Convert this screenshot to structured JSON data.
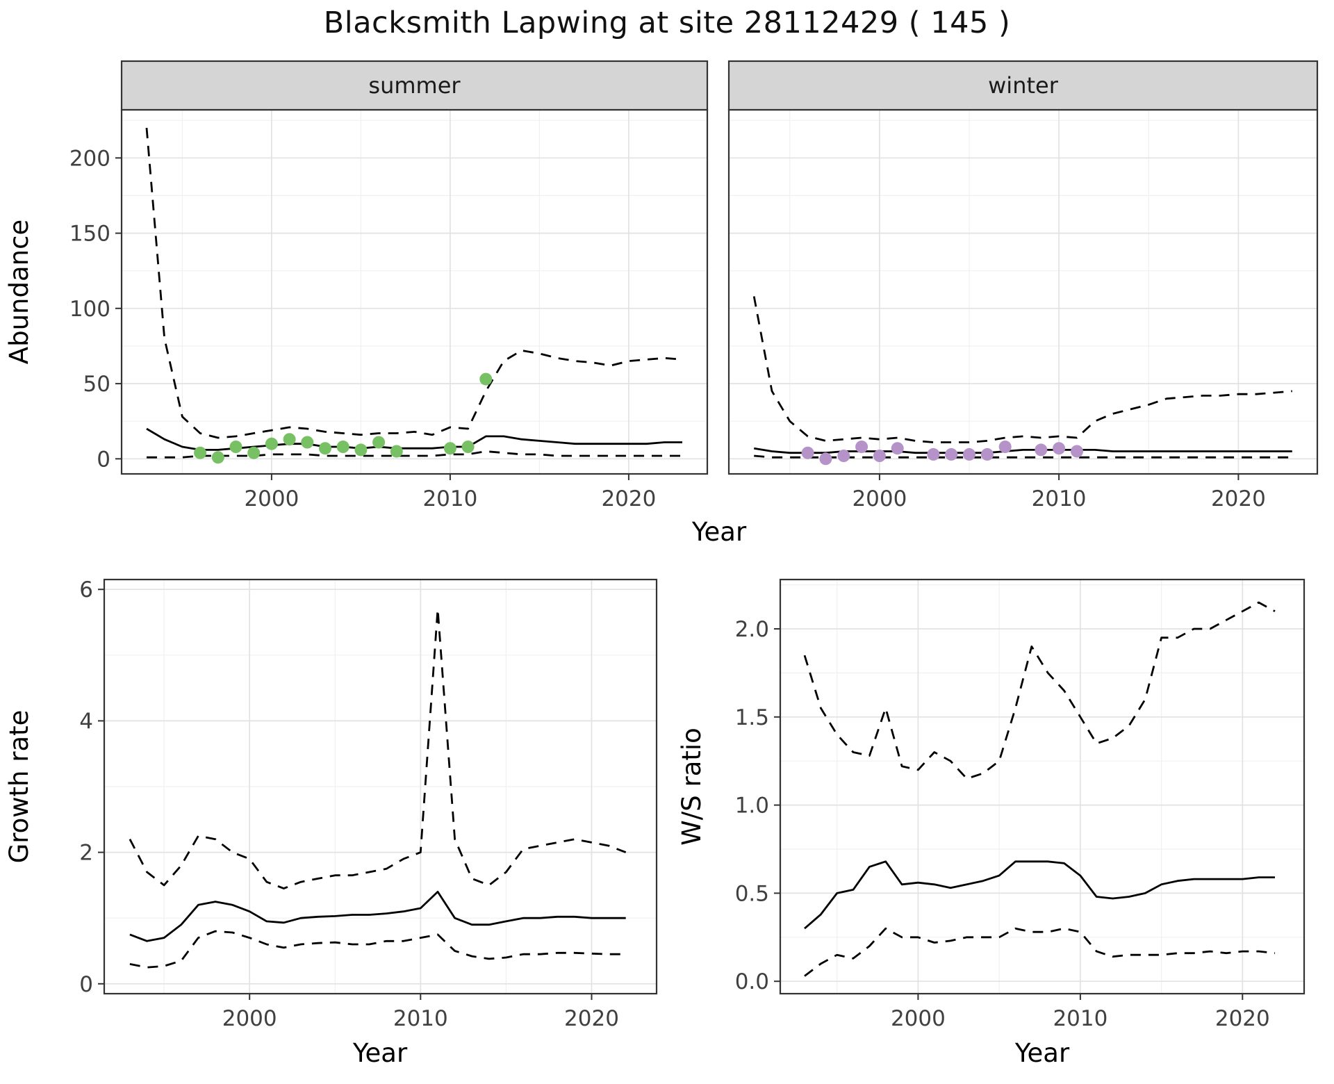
{
  "title": "Blacksmith Lapwing at site 28112429 ( 145 )",
  "colors": {
    "summer_points": "#77c063",
    "winter_points": "#b592c8",
    "line": "#000000",
    "grid_major": "#e2e2e2",
    "grid_minor": "#f0f0f0",
    "strip_bg": "#d5d5d5",
    "panel_border": "#333333",
    "axis_text": "#404040",
    "strip_text": "#1a1a1a"
  },
  "chart_data": [
    {
      "type": "line",
      "facet": "summer",
      "xlabel": "Year",
      "ylabel": "Abundance",
      "x": [
        1993,
        1994,
        1995,
        1996,
        1997,
        1998,
        1999,
        2000,
        2001,
        2002,
        2003,
        2004,
        2005,
        2006,
        2007,
        2008,
        2009,
        2010,
        2011,
        2012,
        2013,
        2014,
        2015,
        2016,
        2017,
        2018,
        2019,
        2020,
        2021,
        2022,
        2023
      ],
      "series": [
        {
          "name": "median",
          "style": "solid",
          "values": [
            20,
            13,
            8,
            6,
            6,
            7,
            8,
            9,
            10,
            10,
            8,
            8,
            7,
            8,
            7,
            7,
            7,
            8,
            8,
            15,
            15,
            13,
            12,
            11,
            10,
            10,
            10,
            10,
            10,
            11,
            11
          ]
        },
        {
          "name": "upper_ci",
          "style": "dashed",
          "values": [
            220,
            80,
            28,
            17,
            14,
            15,
            17,
            19,
            21,
            20,
            18,
            17,
            16,
            17,
            17,
            18,
            16,
            21,
            20,
            45,
            65,
            72,
            70,
            67,
            65,
            64,
            62,
            65,
            66,
            67,
            66
          ]
        },
        {
          "name": "lower_ci",
          "style": "dashed",
          "values": [
            1,
            1,
            1,
            2,
            2,
            2,
            2,
            3,
            3,
            3,
            2,
            2,
            2,
            2,
            2,
            2,
            2,
            3,
            3,
            5,
            4,
            3,
            3,
            2,
            2,
            2,
            2,
            2,
            2,
            2,
            2
          ]
        }
      ],
      "points": {
        "name": "observed-counts-summer",
        "color_key": "summer_points",
        "xy": [
          [
            1996,
            4
          ],
          [
            1997,
            1
          ],
          [
            1998,
            8
          ],
          [
            1999,
            4
          ],
          [
            2000,
            10
          ],
          [
            2001,
            13
          ],
          [
            2002,
            11
          ],
          [
            2003,
            7
          ],
          [
            2004,
            8
          ],
          [
            2005,
            6
          ],
          [
            2006,
            11
          ],
          [
            2007,
            5
          ],
          [
            2010,
            7
          ],
          [
            2011,
            8
          ],
          [
            2012,
            53
          ]
        ]
      },
      "xlim": [
        1991.6,
        2024.4
      ],
      "ylim": [
        -10,
        232
      ],
      "xticks": [
        2000,
        2010,
        2020
      ],
      "yticks": [
        0,
        50,
        100,
        150,
        200
      ],
      "xtick_labels": [
        "2000",
        "2010",
        "2020"
      ],
      "ytick_labels": [
        "0",
        "50",
        "100",
        "150",
        "200"
      ],
      "grid": true,
      "legend": "none"
    },
    {
      "type": "line",
      "facet": "winter",
      "xlabel": "Year",
      "ylabel": "Abundance",
      "x": [
        1993,
        1994,
        1995,
        1996,
        1997,
        1998,
        1999,
        2000,
        2001,
        2002,
        2003,
        2004,
        2005,
        2006,
        2007,
        2008,
        2009,
        2010,
        2011,
        2012,
        2013,
        2014,
        2015,
        2016,
        2017,
        2018,
        2019,
        2020,
        2021,
        2022,
        2023
      ],
      "series": [
        {
          "name": "median",
          "style": "solid",
          "values": [
            7,
            5,
            4,
            4,
            4,
            5,
            5,
            5,
            5,
            4,
            4,
            4,
            4,
            4,
            5,
            6,
            6,
            6,
            6,
            6,
            5,
            5,
            5,
            5,
            5,
            5,
            5,
            5,
            5,
            5,
            5
          ]
        },
        {
          "name": "upper_ci",
          "style": "dashed",
          "values": [
            108,
            45,
            25,
            15,
            12,
            13,
            14,
            13,
            14,
            12,
            11,
            11,
            11,
            12,
            14,
            15,
            14,
            15,
            14,
            25,
            30,
            33,
            36,
            40,
            41,
            42,
            42,
            43,
            43,
            44,
            45
          ]
        },
        {
          "name": "lower_ci",
          "style": "dashed",
          "values": [
            2,
            1,
            1,
            1,
            1,
            1,
            1,
            1,
            1,
            1,
            1,
            1,
            1,
            1,
            1,
            1,
            1,
            1,
            1,
            1,
            1,
            1,
            1,
            1,
            1,
            1,
            1,
            1,
            1,
            1,
            1
          ]
        }
      ],
      "points": {
        "name": "observed-counts-winter",
        "color_key": "winter_points",
        "xy": [
          [
            1996,
            4
          ],
          [
            1997,
            0
          ],
          [
            1998,
            2
          ],
          [
            1999,
            8
          ],
          [
            2000,
            2
          ],
          [
            2001,
            7
          ],
          [
            2003,
            3
          ],
          [
            2004,
            3
          ],
          [
            2005,
            3
          ],
          [
            2006,
            3
          ],
          [
            2007,
            8
          ],
          [
            2009,
            6
          ],
          [
            2010,
            7
          ],
          [
            2011,
            5
          ]
        ]
      },
      "xlim": [
        1991.6,
        2024.4
      ],
      "ylim": [
        -10,
        232
      ],
      "xticks": [
        2000,
        2010,
        2020
      ],
      "yticks": [
        0,
        50,
        100,
        150,
        200
      ],
      "xtick_labels": [
        "2000",
        "2010",
        "2020"
      ],
      "ytick_labels": [
        "0",
        "50",
        "100",
        "150",
        "200"
      ],
      "grid": true,
      "legend": "none"
    },
    {
      "type": "line",
      "facet": "",
      "xlabel": "Year",
      "ylabel": "Growth rate",
      "x": [
        1993,
        1994,
        1995,
        1996,
        1997,
        1998,
        1999,
        2000,
        2001,
        2002,
        2003,
        2004,
        2005,
        2006,
        2007,
        2008,
        2009,
        2010,
        2011,
        2012,
        2013,
        2014,
        2015,
        2016,
        2017,
        2018,
        2019,
        2020,
        2021,
        2022
      ],
      "series": [
        {
          "name": "median",
          "style": "solid",
          "values": [
            0.75,
            0.65,
            0.7,
            0.9,
            1.2,
            1.25,
            1.2,
            1.1,
            0.95,
            0.93,
            1.0,
            1.02,
            1.03,
            1.05,
            1.05,
            1.07,
            1.1,
            1.15,
            1.4,
            1.0,
            0.9,
            0.9,
            0.95,
            1.0,
            1.0,
            1.02,
            1.02,
            1.0,
            1.0,
            1.0
          ]
        },
        {
          "name": "upper_ci",
          "style": "dashed",
          "values": [
            2.2,
            1.7,
            1.5,
            1.8,
            2.25,
            2.2,
            2.0,
            1.9,
            1.55,
            1.45,
            1.55,
            1.6,
            1.65,
            1.65,
            1.7,
            1.75,
            1.9,
            2.0,
            5.7,
            2.2,
            1.6,
            1.5,
            1.7,
            2.05,
            2.1,
            2.15,
            2.2,
            2.15,
            2.1,
            2.0
          ]
        },
        {
          "name": "lower_ci",
          "style": "dashed",
          "values": [
            0.3,
            0.25,
            0.27,
            0.35,
            0.7,
            0.8,
            0.78,
            0.7,
            0.6,
            0.55,
            0.6,
            0.62,
            0.63,
            0.6,
            0.6,
            0.65,
            0.65,
            0.7,
            0.75,
            0.5,
            0.42,
            0.38,
            0.4,
            0.45,
            0.45,
            0.47,
            0.47,
            0.46,
            0.45,
            0.45
          ]
        }
      ],
      "xlim": [
        1991.5,
        2023.8
      ],
      "ylim": [
        -0.15,
        6.15
      ],
      "xticks": [
        2000,
        2010,
        2020
      ],
      "yticks": [
        0,
        2,
        4,
        6
      ],
      "xtick_labels": [
        "2000",
        "2010",
        "2020"
      ],
      "ytick_labels": [
        "0",
        "2",
        "4",
        "6"
      ],
      "grid": true,
      "legend": "none"
    },
    {
      "type": "line",
      "facet": "",
      "xlabel": "Year",
      "ylabel": "W/S ratio",
      "x": [
        1993,
        1994,
        1995,
        1996,
        1997,
        1998,
        1999,
        2000,
        2001,
        2002,
        2003,
        2004,
        2005,
        2006,
        2007,
        2008,
        2009,
        2010,
        2011,
        2012,
        2013,
        2014,
        2015,
        2016,
        2017,
        2018,
        2019,
        2020,
        2021,
        2022
      ],
      "series": [
        {
          "name": "median",
          "style": "solid",
          "values": [
            0.3,
            0.38,
            0.5,
            0.52,
            0.65,
            0.68,
            0.55,
            0.56,
            0.55,
            0.53,
            0.55,
            0.57,
            0.6,
            0.68,
            0.68,
            0.68,
            0.67,
            0.6,
            0.48,
            0.47,
            0.48,
            0.5,
            0.55,
            0.57,
            0.58,
            0.58,
            0.58,
            0.58,
            0.59,
            0.59
          ]
        },
        {
          "name": "upper_ci",
          "style": "dashed",
          "values": [
            1.85,
            1.55,
            1.4,
            1.3,
            1.28,
            1.55,
            1.22,
            1.2,
            1.3,
            1.25,
            1.15,
            1.18,
            1.25,
            1.55,
            1.9,
            1.75,
            1.65,
            1.5,
            1.35,
            1.38,
            1.45,
            1.6,
            1.95,
            1.95,
            2.0,
            2.0,
            2.05,
            2.1,
            2.15,
            2.1
          ]
        },
        {
          "name": "lower_ci",
          "style": "dashed",
          "values": [
            0.03,
            0.1,
            0.15,
            0.13,
            0.2,
            0.3,
            0.25,
            0.25,
            0.22,
            0.23,
            0.25,
            0.25,
            0.25,
            0.3,
            0.28,
            0.28,
            0.3,
            0.28,
            0.17,
            0.14,
            0.15,
            0.15,
            0.15,
            0.16,
            0.16,
            0.17,
            0.16,
            0.17,
            0.17,
            0.16
          ]
        }
      ],
      "xlim": [
        1991.5,
        2023.8
      ],
      "ylim": [
        -0.07,
        2.28
      ],
      "xticks": [
        2000,
        2010,
        2020
      ],
      "yticks": [
        0,
        0.5,
        1.0,
        1.5,
        2.0
      ],
      "xtick_labels": [
        "2000",
        "2010",
        "2020"
      ],
      "ytick_labels": [
        "0.0",
        "0.5",
        "1.0",
        "1.5",
        "2.0"
      ],
      "grid": true,
      "legend": "none"
    }
  ]
}
